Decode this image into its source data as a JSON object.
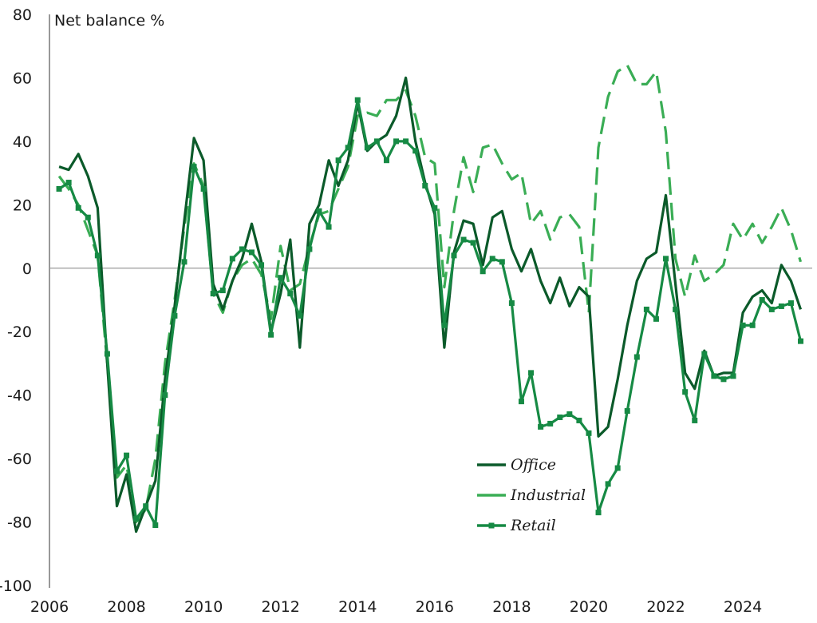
{
  "chart_data": {
    "type": "line",
    "ylabel": "Net balance %",
    "xlabel": "",
    "ylim": [
      -100,
      80
    ],
    "xlim": [
      2006,
      2025.8
    ],
    "yticks": [
      "-100",
      "-80",
      "-60",
      "-40",
      "-20",
      "0",
      "20",
      "40",
      "60",
      "80"
    ],
    "xticks": [
      "2006",
      "2008",
      "2010",
      "2012",
      "2014",
      "2016",
      "2018",
      "2020",
      "2022",
      "2024"
    ],
    "grid": false,
    "zero_line": true,
    "legend_position": "bottom-center",
    "colors": {
      "office": "#0b5a2a",
      "industrial": "#3aad55",
      "retail": "#168a44",
      "zero_line": "#9a9a9a",
      "axis": "#555555"
    },
    "series": [
      {
        "name": "Office",
        "style": "solid",
        "x": [
          2006.25,
          2006.5,
          2006.75,
          2007.0,
          2007.25,
          2007.5,
          2007.75,
          2008.0,
          2008.25,
          2008.5,
          2008.75,
          2009.0,
          2009.25,
          2009.5,
          2009.75,
          2010.0,
          2010.25,
          2010.5,
          2010.75,
          2011.0,
          2011.25,
          2011.5,
          2011.75,
          2012.0,
          2012.25,
          2012.5,
          2012.75,
          2013.0,
          2013.25,
          2013.5,
          2013.75,
          2014.0,
          2014.25,
          2014.5,
          2014.75,
          2015.0,
          2015.25,
          2015.5,
          2015.75,
          2016.0,
          2016.25,
          2016.5,
          2016.75,
          2017.0,
          2017.25,
          2017.5,
          2017.75,
          2018.0,
          2018.25,
          2018.5,
          2018.75,
          2019.0,
          2019.25,
          2019.5,
          2019.75,
          2020.0,
          2020.25,
          2020.5,
          2020.75,
          2021.0,
          2021.25,
          2021.5,
          2021.75,
          2022.0,
          2022.25,
          2022.5,
          2022.75,
          2023.0,
          2023.25,
          2023.5,
          2023.75,
          2024.0,
          2024.25,
          2024.5,
          2024.75,
          2025.0,
          2025.25,
          2025.5
        ],
        "values": [
          32,
          31,
          36,
          29,
          19,
          -30,
          -75,
          -65,
          -83,
          -75,
          -67,
          -35,
          -12,
          15,
          41,
          34,
          -5,
          -13,
          -4,
          3,
          14,
          2,
          -20,
          -8,
          9,
          -25,
          14,
          20,
          34,
          26,
          34,
          52,
          37,
          40,
          42,
          48,
          60,
          40,
          27,
          17,
          -25,
          5,
          15,
          14,
          1,
          16,
          18,
          6,
          -1,
          6,
          -4,
          -11,
          -3,
          -12,
          -6,
          -9,
          -53,
          -50,
          -35,
          -18,
          -4,
          3,
          5,
          23,
          -5,
          -33,
          -38,
          -26,
          -34,
          -33,
          -33,
          -14,
          -9,
          -7,
          -11,
          1,
          -4,
          -13
        ]
      },
      {
        "name": "Industrial",
        "style": "dashed",
        "x": [
          2006.25,
          2006.5,
          2006.75,
          2007.0,
          2007.25,
          2007.5,
          2007.75,
          2008.0,
          2008.25,
          2008.5,
          2008.75,
          2009.0,
          2009.25,
          2009.5,
          2009.75,
          2010.0,
          2010.25,
          2010.5,
          2010.75,
          2011.0,
          2011.25,
          2011.5,
          2011.75,
          2012.0,
          2012.25,
          2012.5,
          2012.75,
          2013.0,
          2013.25,
          2013.5,
          2013.75,
          2014.0,
          2014.25,
          2014.5,
          2014.75,
          2015.0,
          2015.25,
          2015.5,
          2015.75,
          2016.0,
          2016.25,
          2016.5,
          2016.75,
          2017.0,
          2017.25,
          2017.5,
          2017.75,
          2018.0,
          2018.25,
          2018.5,
          2018.75,
          2019.0,
          2019.25,
          2019.5,
          2019.75,
          2020.0,
          2020.25,
          2020.5,
          2020.75,
          2021.0,
          2021.25,
          2021.5,
          2021.75,
          2022.0,
          2022.25,
          2022.5,
          2022.75,
          2023.0,
          2023.25,
          2023.5,
          2023.75,
          2024.0,
          2024.25,
          2024.5,
          2024.75,
          2025.0,
          2025.25,
          2025.5
        ],
        "values": [
          29,
          25,
          20,
          12,
          4,
          -30,
          -66,
          -62,
          -80,
          -76,
          -60,
          -30,
          -10,
          13,
          33,
          26,
          -8,
          -14,
          -4,
          1,
          3,
          -2,
          -16,
          7,
          -7,
          -5,
          7,
          17,
          18,
          25,
          32,
          48,
          49,
          48,
          53,
          53,
          56,
          48,
          35,
          33,
          -6,
          18,
          35,
          24,
          38,
          39,
          33,
          28,
          30,
          14,
          18,
          9,
          16,
          17,
          13,
          -14,
          38,
          54,
          62,
          64,
          58,
          58,
          62,
          43,
          3,
          -9,
          4,
          -4,
          -2,
          1,
          14,
          9,
          14,
          8,
          13,
          19,
          12,
          2
        ]
      },
      {
        "name": "Retail",
        "style": "solid-markers",
        "x": [
          2006.25,
          2006.5,
          2006.75,
          2007.0,
          2007.25,
          2007.5,
          2007.75,
          2008.0,
          2008.25,
          2008.5,
          2008.75,
          2009.0,
          2009.25,
          2009.5,
          2009.75,
          2010.0,
          2010.25,
          2010.5,
          2010.75,
          2011.0,
          2011.25,
          2011.5,
          2011.75,
          2012.0,
          2012.25,
          2012.5,
          2012.75,
          2013.0,
          2013.25,
          2013.5,
          2013.75,
          2014.0,
          2014.25,
          2014.5,
          2014.75,
          2015.0,
          2015.25,
          2015.5,
          2015.75,
          2016.0,
          2016.25,
          2016.5,
          2016.75,
          2017.0,
          2017.25,
          2017.5,
          2017.75,
          2018.0,
          2018.25,
          2018.5,
          2018.75,
          2019.0,
          2019.25,
          2019.5,
          2019.75,
          2020.0,
          2020.25,
          2020.5,
          2020.75,
          2021.0,
          2021.25,
          2021.5,
          2021.75,
          2022.0,
          2022.25,
          2022.5,
          2022.75,
          2023.0,
          2023.25,
          2023.5,
          2023.75,
          2024.0,
          2024.25,
          2024.5,
          2024.75,
          2025.0,
          2025.25,
          2025.5
        ],
        "values": [
          25,
          27,
          19,
          16,
          4,
          -27,
          -64,
          -59,
          -79,
          -75,
          -81,
          -40,
          -15,
          2,
          32,
          25,
          -8,
          -7,
          3,
          6,
          5,
          1,
          -21,
          -3,
          -8,
          -15,
          6,
          18,
          13,
          34,
          38,
          53,
          38,
          40,
          34,
          40,
          40,
          37,
          26,
          19,
          -18,
          4,
          9,
          8,
          -1,
          3,
          2,
          -11,
          -42,
          -33,
          -50,
          -49,
          -47,
          -46,
          -48,
          -52,
          -77,
          -68,
          -63,
          -45,
          -28,
          -13,
          -16,
          3,
          -13,
          -39,
          -48,
          -27,
          -34,
          -35,
          -34,
          -18,
          -18,
          -10,
          -13,
          -12,
          -11,
          -23
        ]
      }
    ]
  }
}
